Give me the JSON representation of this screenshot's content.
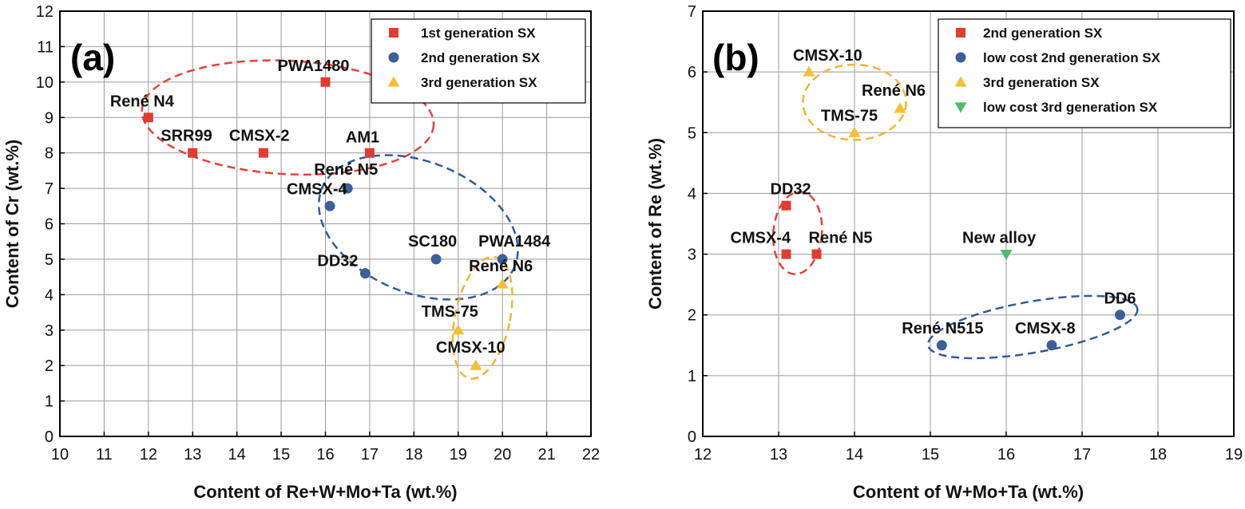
{
  "colors": {
    "red": "#e03c31",
    "blue": "#3b5f98",
    "yellow": "#f5c033",
    "green": "#4cbb6c",
    "red_dash": "#e8403a",
    "blue_dash": "#2f5c9c",
    "yellow_dash": "#f2b533"
  },
  "chart_data": [
    {
      "type": "scatter",
      "panel_label": "(a)",
      "xlabel": "Content of Re+W+Mo+Ta (wt.%)",
      "ylabel": "Content of Cr (wt.%)",
      "xlim": [
        10,
        22
      ],
      "ylim": [
        0,
        12
      ],
      "xticks": [
        "10",
        "11",
        "12",
        "13",
        "14",
        "15",
        "16",
        "17",
        "18",
        "19",
        "20",
        "21",
        "22"
      ],
      "yticks": [
        "0",
        "1",
        "2",
        "3",
        "4",
        "5",
        "6",
        "7",
        "8",
        "9",
        "10",
        "11",
        "12"
      ],
      "grid": true,
      "legend_position": "top-right",
      "series": [
        {
          "name": "1st generation SX",
          "marker": "square",
          "color": "#e03c31",
          "points": [
            {
              "label": "René N4",
              "x": 12,
              "y": 9
            },
            {
              "label": "SRR99",
              "x": 13,
              "y": 8
            },
            {
              "label": "CMSX-2",
              "x": 14.6,
              "y": 8
            },
            {
              "label": "PWA1480",
              "x": 16,
              "y": 10
            },
            {
              "label": "AM1",
              "x": 17,
              "y": 8
            }
          ]
        },
        {
          "name": "2nd generation SX",
          "marker": "circle",
          "color": "#3b5f98",
          "points": [
            {
              "label": "René N5",
              "x": 16.5,
              "y": 7
            },
            {
              "label": "CMSX-4",
              "x": 16.1,
              "y": 6.5
            },
            {
              "label": "DD32",
              "x": 16.9,
              "y": 4.6
            },
            {
              "label": "SC180",
              "x": 18.5,
              "y": 5
            },
            {
              "label": "PWA1484",
              "x": 20,
              "y": 5
            }
          ]
        },
        {
          "name": "3rd generation SX",
          "marker": "triangle-up",
          "color": "#f5c033",
          "points": [
            {
              "label": "René N6",
              "x": 20,
              "y": 4.3
            },
            {
              "label": "TMS-75",
              "x": 19,
              "y": 3
            },
            {
              "label": "CMSX-10",
              "x": 19.4,
              "y": 2
            }
          ]
        }
      ]
    },
    {
      "type": "scatter",
      "panel_label": "(b)",
      "xlabel": "Content of W+Mo+Ta (wt.%)",
      "ylabel": "Content of Re (wt.%)",
      "xlim": [
        12,
        19
      ],
      "ylim": [
        0,
        7
      ],
      "xticks": [
        "12",
        "13",
        "14",
        "15",
        "16",
        "17",
        "18",
        "19"
      ],
      "yticks": [
        "0",
        "1",
        "2",
        "3",
        "4",
        "5",
        "6",
        "7"
      ],
      "grid": true,
      "legend_position": "top-right",
      "series": [
        {
          "name": "2nd generation SX",
          "marker": "square",
          "color": "#e03c31",
          "points": [
            {
              "label": "DD32",
              "x": 13.1,
              "y": 3.8
            },
            {
              "label": "CMSX-4",
              "x": 13.1,
              "y": 3
            },
            {
              "label": "René N5",
              "x": 13.5,
              "y": 3
            }
          ]
        },
        {
          "name": "low cost 2nd generation SX",
          "marker": "circle",
          "color": "#3b5f98",
          "points": [
            {
              "label": "René N515",
              "x": 15.15,
              "y": 1.5
            },
            {
              "label": "CMSX-8",
              "x": 16.6,
              "y": 1.5
            },
            {
              "label": "DD6",
              "x": 17.5,
              "y": 2
            }
          ]
        },
        {
          "name": "3rd generation SX",
          "marker": "triangle-up",
          "color": "#f5c033",
          "points": [
            {
              "label": "CMSX-10",
              "x": 13.4,
              "y": 6
            },
            {
              "label": "René N6",
              "x": 14.6,
              "y": 5.4
            },
            {
              "label": "TMS-75",
              "x": 14,
              "y": 5
            }
          ]
        },
        {
          "name": "low cost 3rd generation SX",
          "marker": "triangle-down",
          "color": "#4cbb6c",
          "points": [
            {
              "label": "New alloy",
              "x": 16,
              "y": 3
            }
          ]
        }
      ]
    }
  ]
}
